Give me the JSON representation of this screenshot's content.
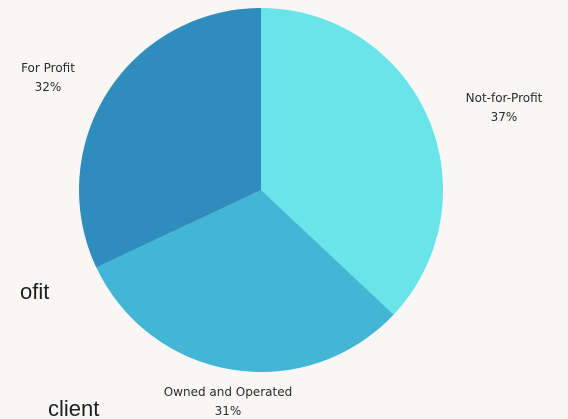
{
  "background_text": {
    "fragment_1": "ofit",
    "fragment_2": "client"
  },
  "chart_data": {
    "type": "pie",
    "title": "",
    "start_angle_deg": 0,
    "direction": "clockwise",
    "slices": [
      {
        "label": "Not-for-Profit",
        "percent_label": "37%",
        "value": 37,
        "color": "#69e5e9"
      },
      {
        "label": "Owned and Operated",
        "percent_label": "31%",
        "value": 31,
        "color": "#43b6d6"
      },
      {
        "label": "For Profit",
        "percent_label": "32%",
        "value": 32,
        "color": "#2f8dbd"
      }
    ]
  }
}
